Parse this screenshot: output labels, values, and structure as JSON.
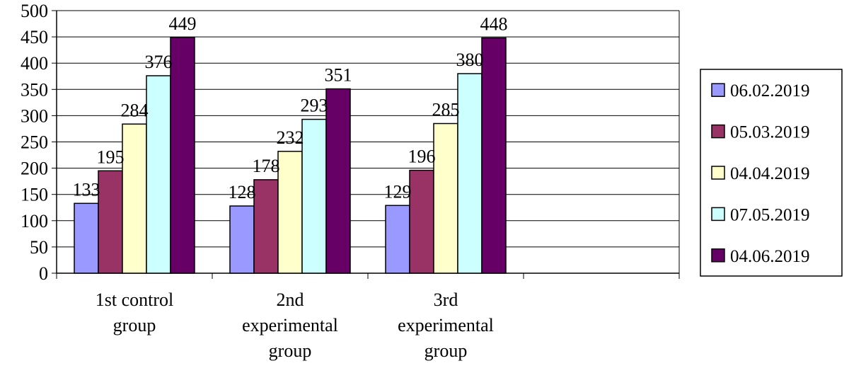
{
  "chart_data": {
    "type": "bar",
    "title": "",
    "xlabel": "",
    "ylabel": "",
    "ylim": [
      0,
      500
    ],
    "ytick_step": 50,
    "grid": true,
    "legend_position": "right",
    "categories": [
      [
        "1st control",
        "group"
      ],
      [
        "2nd",
        "experimental",
        "group"
      ],
      [
        "3rd",
        "experimental",
        "group"
      ],
      []
    ],
    "series": [
      {
        "name": "06.02.2019",
        "color": "#9999ff",
        "values": [
          133,
          128,
          129,
          null
        ]
      },
      {
        "name": "05.03.2019",
        "color": "#993366",
        "values": [
          195,
          178,
          196,
          null
        ]
      },
      {
        "name": "04.04.2019",
        "color": "#ffffcc",
        "values": [
          284,
          232,
          285,
          null
        ]
      },
      {
        "name": "07.05.2019",
        "color": "#ccffff",
        "values": [
          376,
          293,
          380,
          null
        ]
      },
      {
        "name": "04.06.2019",
        "color": "#660066",
        "values": [
          449,
          351,
          448,
          null
        ]
      }
    ]
  }
}
